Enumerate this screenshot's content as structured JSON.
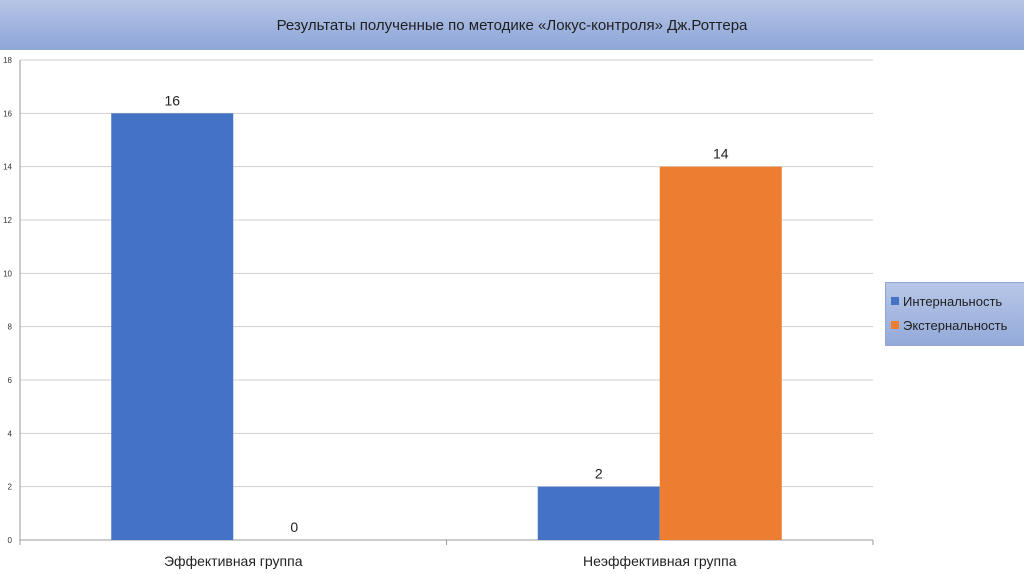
{
  "title": "Результаты полученные по методике «Локус-контроля» Дж.Роттера",
  "chart_data": {
    "type": "bar",
    "categories": [
      "Эффективная группа",
      "Неэффективная группа"
    ],
    "series": [
      {
        "name": "Интернальность",
        "values": [
          16,
          2
        ],
        "color": "#4472c4"
      },
      {
        "name": "Экстернальность",
        "values": [
          0,
          14
        ],
        "color": "#ed7d31"
      }
    ],
    "ylim": [
      0,
      18
    ],
    "yticks": [
      0,
      2,
      4,
      6,
      8,
      10,
      12,
      14,
      16,
      18
    ],
    "grid": true,
    "data_labels": true,
    "legend_position": "right"
  }
}
